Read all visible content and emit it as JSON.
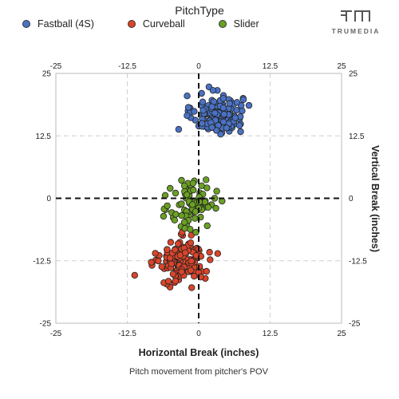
{
  "legend": {
    "title": "PitchType",
    "items": [
      {
        "label": "Fastball (4S)",
        "color": "#4a72c4"
      },
      {
        "label": "Curveball",
        "color": "#d9452b"
      },
      {
        "label": "Slider",
        "color": "#6aa024"
      }
    ]
  },
  "logo": {
    "text": "TRUMEDIA"
  },
  "chart_data": {
    "type": "scatter",
    "xlabel": "Horizontal Break (inches)",
    "ylabel": "Vertical Break (inches)",
    "caption": "Pitch movement from pitcher's POV",
    "xlim": [
      -25,
      25
    ],
    "ylim": [
      -25,
      25
    ],
    "xticks": [
      "-25",
      "-12.5",
      "0",
      "12.5",
      "25"
    ],
    "yticks": [
      "25",
      "12.5",
      "0",
      "-12.5",
      "-25"
    ],
    "grid": true,
    "zero_lines": true,
    "legend_position": "top",
    "series": [
      {
        "name": "Fastball (4S)",
        "color": "#4a72c4",
        "cluster": {
          "x_center": 3.3,
          "y_center": 16.8,
          "x_spread": 2.2,
          "y_spread": 1.9,
          "count": 140
        },
        "points": [
          [
            -3.5,
            13.8
          ],
          [
            -1.8,
            18.2
          ],
          [
            -0.8,
            17.4
          ],
          [
            0.6,
            15.0
          ],
          [
            0.5,
            21.0
          ],
          [
            1.8,
            22.3
          ],
          [
            2.5,
            21.6
          ],
          [
            4.3,
            20.0
          ],
          [
            6.4,
            16.1
          ],
          [
            6.7,
            19.2
          ],
          [
            8.8,
            18.6
          ],
          [
            3.1,
            13.6
          ],
          [
            2.3,
            14.2
          ]
        ]
      },
      {
        "name": "Curveball",
        "color": "#d9452b",
        "cluster": {
          "x_center": -2.8,
          "y_center": -12.6,
          "x_spread": 1.9,
          "y_spread": 2.0,
          "count": 140
        },
        "points": [
          [
            -11.2,
            -15.4
          ],
          [
            -8.3,
            -12.8
          ],
          [
            -7.6,
            -11.0
          ],
          [
            -6.1,
            -16.9
          ],
          [
            -5.3,
            -16.6
          ],
          [
            -2.9,
            -6.8
          ],
          [
            -1.3,
            -7.4
          ],
          [
            -4.9,
            -8.8
          ],
          [
            -3.6,
            -9.1
          ],
          [
            -1.4,
            -8.9
          ],
          [
            1.9,
            -10.8
          ],
          [
            2.0,
            -12.3
          ],
          [
            -0.8,
            -15.6
          ]
        ]
      },
      {
        "name": "Slider",
        "color": "#6aa024",
        "cluster": {
          "x_center": -1.0,
          "y_center": -1.4,
          "x_spread": 2.0,
          "y_spread": 2.6,
          "count": 75
        },
        "points": [
          [
            -5.0,
            2.0
          ],
          [
            -5.5,
            -1.5
          ],
          [
            -3.0,
            3.6
          ],
          [
            -2.5,
            2.5
          ],
          [
            -1.0,
            3.0
          ],
          [
            0.5,
            2.5
          ],
          [
            2.8,
            0.0
          ],
          [
            3.0,
            -2.0
          ],
          [
            1.5,
            -5.5
          ],
          [
            -1.5,
            -6.2
          ],
          [
            -2.5,
            -4.8
          ],
          [
            -4.0,
            -3.2
          ],
          [
            -0.5,
            -6.8
          ]
        ]
      }
    ]
  }
}
